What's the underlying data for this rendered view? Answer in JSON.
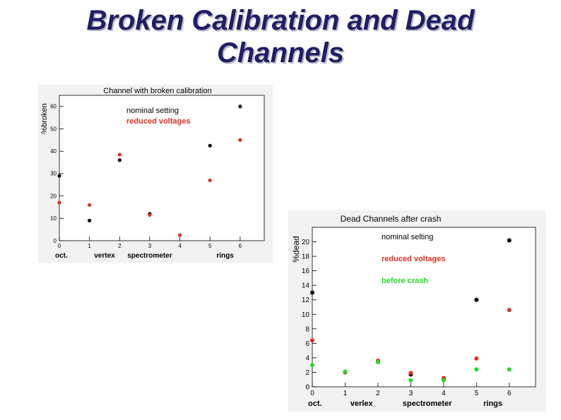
{
  "slide": {
    "title_line1": "Broken Calibration and Dead",
    "title_line2": "Channels"
  },
  "chart_data": [
    {
      "type": "scatter",
      "title": "Channel with broken calibration",
      "ylabel": "%broken",
      "xlim": [
        0,
        6.8
      ],
      "ylim": [
        0,
        65
      ],
      "xticks": [
        0,
        1,
        2,
        3,
        4,
        5,
        6
      ],
      "yticks": [
        0,
        10,
        20,
        30,
        40,
        50,
        60
      ],
      "category_labels": [
        {
          "text": "oct.",
          "x": 0
        },
        {
          "text": "vertex",
          "x": 1.5
        },
        {
          "text": "spectrometer",
          "x": 3
        },
        {
          "text": "rings",
          "x": 5.5
        }
      ],
      "legend_placement": "top-center",
      "series": [
        {
          "name": "nominal setting",
          "color": "#000000",
          "points": [
            [
              0,
              29
            ],
            [
              1,
              9
            ],
            [
              2,
              36
            ],
            [
              3,
              12
            ],
            [
              5,
              42.5
            ],
            [
              6,
              60
            ]
          ]
        },
        {
          "name": "reduced voltages",
          "color": "#e03020",
          "points": [
            [
              0,
              17
            ],
            [
              1,
              16
            ],
            [
              2,
              38.5
            ],
            [
              3,
              11.5
            ],
            [
              4,
              2.5
            ],
            [
              5,
              27
            ],
            [
              6,
              45
            ]
          ]
        }
      ]
    },
    {
      "type": "scatter",
      "title": "Dead Channels after crash",
      "ylabel": "%dead",
      "xlim": [
        0,
        6.8
      ],
      "ylim": [
        0,
        22
      ],
      "xticks": [
        0,
        1,
        2,
        3,
        4,
        5,
        6
      ],
      "yticks": [
        0,
        2,
        4,
        6,
        8,
        10,
        12,
        14,
        16,
        18,
        20
      ],
      "category_labels": [
        {
          "text": "oct.",
          "x": 0
        },
        {
          "text": "verlex",
          "x": 1.5
        },
        {
          "text": "spectrometer",
          "x": 3.5
        },
        {
          "text": "rings",
          "x": 5.5
        }
      ],
      "legend_placement": "top-center",
      "series": [
        {
          "name": "nominal selting",
          "color": "#000000",
          "points": [
            [
              0,
              13
            ],
            [
              1,
              2
            ],
            [
              2,
              3.5
            ],
            [
              3,
              1.7
            ],
            [
              4,
              1.1
            ],
            [
              5,
              12
            ],
            [
              6,
              20.2
            ]
          ]
        },
        {
          "name": "reduced voltages",
          "color": "#e03020",
          "points": [
            [
              0,
              6.4
            ],
            [
              1,
              2
            ],
            [
              2,
              3.6
            ],
            [
              3,
              1.9
            ],
            [
              4,
              1.2
            ],
            [
              5,
              3.9
            ],
            [
              6,
              10.6
            ]
          ]
        },
        {
          "name": "before crash",
          "color": "#22dd22",
          "points": [
            [
              0,
              3
            ],
            [
              1,
              2.1
            ],
            [
              2,
              3.4
            ],
            [
              3,
              0.9
            ],
            [
              4,
              0.9
            ],
            [
              5,
              2.4
            ],
            [
              6,
              2.4
            ]
          ]
        }
      ]
    }
  ]
}
